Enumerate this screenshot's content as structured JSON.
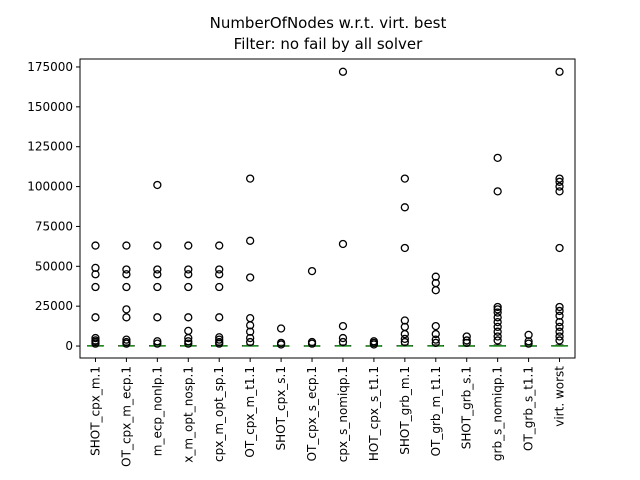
{
  "chart_data": {
    "type": "box",
    "title": "NumberOfNodes w.r.t. virt. best",
    "subtitle": "Filter: no fail by all solver",
    "categories": [
      "SHOT_cpx_m.1",
      "OT_cpx_m_ecp.1",
      "m_ecp_nonlp.1",
      "x_m_opt_nosp.1",
      "cpx_m_opt_sp.1",
      "OT_cpx_m_t1.1",
      "SHOT_cpx_s.1",
      "OT_cpx_s_ecp.1",
      "cpx_s_nomiqp.1",
      "HOT_cpx_s_t1.1",
      "SHOT_grb_m.1",
      "OT_grb_m_t1.1",
      "SHOT_grb_s.1",
      "grb_s_nomiqp.1",
      "OT_grb_s_t1.1",
      "virt. worst"
    ],
    "boxes": [
      {
        "whislo": 0,
        "q1": 0,
        "median": 50,
        "q3": 300,
        "whishi": 700,
        "fliers": [
          63000,
          49000,
          45000,
          37000,
          18000,
          5000,
          3500,
          2500,
          1500
        ]
      },
      {
        "whislo": 0,
        "q1": 0,
        "median": 50,
        "q3": 300,
        "whishi": 700,
        "fliers": [
          63000,
          48000,
          45000,
          37000,
          23000,
          18000,
          4000,
          2500,
          1500
        ]
      },
      {
        "whislo": 0,
        "q1": 0,
        "median": 50,
        "q3": 300,
        "whishi": 700,
        "fliers": [
          101000,
          63000,
          48000,
          45000,
          37000,
          18000,
          3000,
          1500
        ]
      },
      {
        "whislo": 0,
        "q1": 0,
        "median": 50,
        "q3": 300,
        "whishi": 700,
        "fliers": [
          63000,
          48000,
          45000,
          37000,
          18000,
          9500,
          5000,
          3000,
          1500
        ]
      },
      {
        "whislo": 0,
        "q1": 0,
        "median": 50,
        "q3": 300,
        "whishi": 700,
        "fliers": [
          63000,
          48000,
          45000,
          37000,
          18000,
          5500,
          4000,
          2500,
          1500
        ]
      },
      {
        "whislo": 0,
        "q1": 0,
        "median": 50,
        "q3": 300,
        "whishi": 700,
        "fliers": [
          105000,
          66000,
          43000,
          17500,
          13000,
          9000,
          5000,
          2500
        ]
      },
      {
        "whislo": 0,
        "q1": 0,
        "median": 50,
        "q3": 200,
        "whishi": 500,
        "fliers": [
          11000,
          2000,
          1000
        ]
      },
      {
        "whislo": 0,
        "q1": 0,
        "median": 50,
        "q3": 200,
        "whishi": 500,
        "fliers": [
          47000,
          2500,
          1500
        ]
      },
      {
        "whislo": 0,
        "q1": 0,
        "median": 50,
        "q3": 300,
        "whishi": 700,
        "fliers": [
          172000,
          64000,
          12500,
          5000,
          2500
        ]
      },
      {
        "whislo": 0,
        "q1": 0,
        "median": 50,
        "q3": 200,
        "whishi": 500,
        "fliers": [
          3000,
          2000,
          1000
        ]
      },
      {
        "whislo": 0,
        "q1": 0,
        "median": 50,
        "q3": 300,
        "whishi": 700,
        "fliers": [
          105000,
          87000,
          61500,
          16000,
          12000,
          7500,
          4500,
          2500
        ]
      },
      {
        "whislo": 0,
        "q1": 0,
        "median": 50,
        "q3": 300,
        "whishi": 700,
        "fliers": [
          43500,
          39500,
          35000,
          12500,
          7500,
          4000,
          2000
        ]
      },
      {
        "whislo": 0,
        "q1": 0,
        "median": 50,
        "q3": 200,
        "whishi": 500,
        "fliers": [
          6000,
          3500,
          2000
        ]
      },
      {
        "whislo": 0,
        "q1": 0,
        "median": 50,
        "q3": 300,
        "whishi": 700,
        "fliers": [
          118000,
          97000,
          24500,
          23000,
          21000,
          18000,
          15000,
          12000,
          9000,
          6000,
          3500
        ]
      },
      {
        "whislo": 0,
        "q1": 0,
        "median": 50,
        "q3": 200,
        "whishi": 500,
        "fliers": [
          7000,
          3000,
          1500
        ]
      },
      {
        "whislo": 0,
        "q1": 0,
        "median": 50,
        "q3": 300,
        "whishi": 700,
        "fliers": [
          172000,
          105000,
          103000,
          100000,
          97000,
          61500,
          24500,
          22000,
          19000,
          15000,
          12000,
          9000,
          6000,
          3500
        ]
      }
    ],
    "median_color": "#2ca02c",
    "ylim": [
      -7500,
      180000
    ],
    "yticks": [
      0,
      25000,
      50000,
      75000,
      100000,
      125000,
      150000,
      175000
    ]
  }
}
